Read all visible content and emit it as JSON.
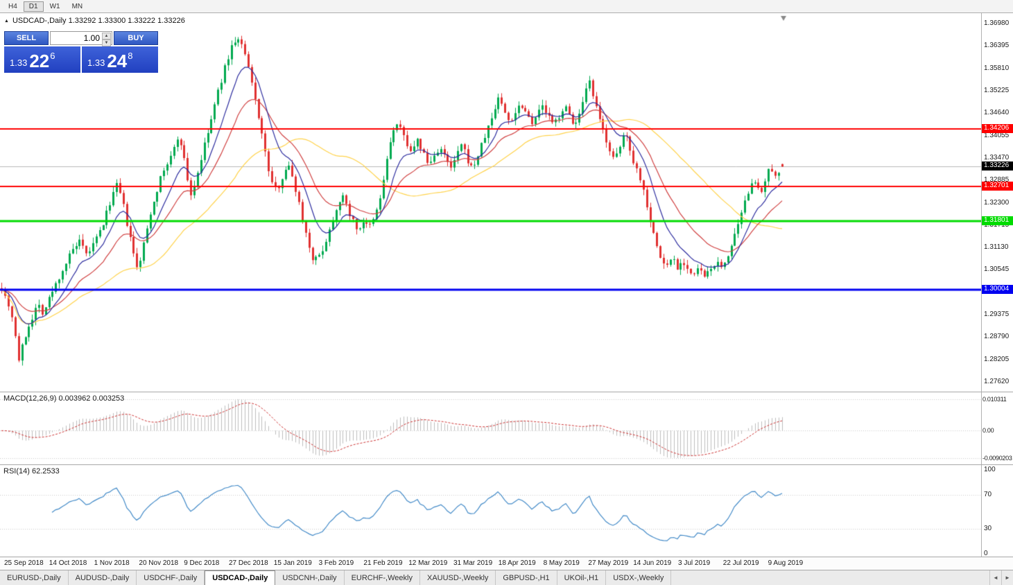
{
  "window": {
    "toolbar_timeframes": [
      {
        "label": "H4",
        "active": false
      },
      {
        "label": "D1",
        "active": true
      },
      {
        "label": "W1",
        "active": false
      },
      {
        "label": "MN",
        "active": false
      }
    ]
  },
  "chart": {
    "title": "USDCAD-,Daily 1.33292 1.33300 1.33222 1.33226",
    "collapse_icon": "▲",
    "price_axis_ticks": [
      "1.36980",
      "1.36395",
      "1.35810",
      "1.35225",
      "1.34640",
      "1.34055",
      "1.33470",
      "1.32885",
      "1.32300",
      "1.31715",
      "1.31130",
      "1.30545",
      "1.29960",
      "1.29375",
      "1.28790",
      "1.28205",
      "1.27620"
    ],
    "levels": [
      {
        "label": "1.34206",
        "price": 1.34206,
        "color": "#FF0000",
        "width": 2
      },
      {
        "label": "1.32701",
        "price": 1.32701,
        "color": "#FF0000",
        "width": 2
      },
      {
        "label": "1.31801",
        "price": 1.31801,
        "color": "#00DB00",
        "width": 3
      },
      {
        "label": "1.30004",
        "price": 1.30004,
        "color": "#0000F0",
        "width": 3
      }
    ],
    "current_price": {
      "label": "1.33226",
      "price": 1.33226,
      "color": "#000000"
    }
  },
  "trade_panel": {
    "sell_label": "SELL",
    "buy_label": "BUY",
    "volume": "1.00",
    "spin_up_icon": "▲",
    "spin_down_icon": "▼",
    "bid": {
      "prefix": "1.33",
      "big": "22",
      "sup": "6"
    },
    "ask": {
      "prefix": "1.33",
      "big": "24",
      "sup": "8"
    }
  },
  "macd_panel": {
    "label": "MACD(12,26,9) 0.003962 0.003253",
    "axis": [
      "0.010311",
      "0.00",
      "-0.0090203"
    ]
  },
  "rsi_panel": {
    "label": "RSI(14) 62.2533",
    "axis": [
      "100",
      "70",
      "30",
      "0"
    ],
    "axis_values": [
      100,
      70,
      30,
      0
    ]
  },
  "date_axis": [
    "25 Sep 2018",
    "14 Oct 2018",
    "1 Nov 2018",
    "20 Nov 2018",
    "9 Dec 2018",
    "27 Dec 2018",
    "15 Jan 2019",
    "3 Feb 2019",
    "21 Feb 2019",
    "12 Mar 2019",
    "31 Mar 2019",
    "18 Apr 2019",
    "8 May 2019",
    "27 May 2019",
    "14 Jun 2019",
    "3 Jul 2019",
    "22 Jul 2019",
    "9 Aug 2019"
  ],
  "tabs": {
    "scroll_left_icon": "◄",
    "scroll_right_icon": "►",
    "items": [
      {
        "label": "EURUSD-,Daily",
        "active": false
      },
      {
        "label": "AUDUSD-,Daily",
        "active": false
      },
      {
        "label": "USDCHF-,Daily",
        "active": false
      },
      {
        "label": "USDCAD-,Daily",
        "active": true
      },
      {
        "label": "USDCNH-,Daily",
        "active": false
      },
      {
        "label": "EURCHF-,Weekly",
        "active": false
      },
      {
        "label": "XAUUSD-,Weekly",
        "active": false
      },
      {
        "label": "GBPUSD-,H1",
        "active": false
      },
      {
        "label": "UKOil-,H1",
        "active": false
      },
      {
        "label": "USDX-,Weekly",
        "active": false
      }
    ]
  },
  "chart_data": {
    "type": "candlestick",
    "symbol": "USDCAD-",
    "timeframe": "Daily",
    "ohlc": {
      "open": 1.33292,
      "high": 1.333,
      "low": 1.33222,
      "close": 1.33226
    },
    "bars": 232,
    "price_range": [
      1.27348,
      1.37234
    ],
    "data_width_ratio": 0.7986,
    "horizontal_levels": [
      1.34206,
      1.32701,
      1.31801,
      1.30004
    ],
    "last_price": 1.33226,
    "moving_averages": [
      {
        "type": "EMA",
        "period": 10,
        "color": "#2B2B9E"
      },
      {
        "type": "EMA",
        "period": 22,
        "color": "#D04040"
      },
      {
        "type": "SMA",
        "period": 45,
        "color": "#FFD24A"
      }
    ],
    "macd": {
      "params": [
        12,
        26,
        9
      ],
      "last_main": 0.003962,
      "last_signal": 0.003253,
      "axis_max": 0.010311,
      "axis_min": -0.0090203
    },
    "rsi": {
      "period": 14,
      "last": 62.2533,
      "levels": [
        70,
        30
      ]
    },
    "colors": {
      "up": "#00A94F",
      "down": "#E03030",
      "macd_hist": "#BDBDBD",
      "macd_signal": "#CC3333",
      "rsi_line": "#4189C7",
      "current_line": "#B8B8B8",
      "grid_dot": "#C9C9C9"
    },
    "anchors": [
      [
        0.0,
        1.301
      ],
      [
        0.006,
        1.2975
      ],
      [
        0.012,
        1.2945
      ],
      [
        0.017,
        1.2885
      ],
      [
        0.021,
        1.2815
      ],
      [
        0.026,
        1.285
      ],
      [
        0.032,
        1.2895
      ],
      [
        0.039,
        1.293
      ],
      [
        0.046,
        1.2965
      ],
      [
        0.053,
        1.294
      ],
      [
        0.06,
        1.2975
      ],
      [
        0.067,
        1.3005
      ],
      [
        0.075,
        1.304
      ],
      [
        0.083,
        1.3075
      ],
      [
        0.091,
        1.3105
      ],
      [
        0.1,
        1.3125
      ],
      [
        0.108,
        1.309
      ],
      [
        0.116,
        1.3115
      ],
      [
        0.124,
        1.3145
      ],
      [
        0.132,
        1.3185
      ],
      [
        0.14,
        1.324
      ],
      [
        0.148,
        1.3275
      ],
      [
        0.154,
        1.3235
      ],
      [
        0.16,
        1.3175
      ],
      [
        0.167,
        1.311
      ],
      [
        0.173,
        1.3055
      ],
      [
        0.179,
        1.309
      ],
      [
        0.186,
        1.316
      ],
      [
        0.193,
        1.3225
      ],
      [
        0.2,
        1.327
      ],
      [
        0.208,
        1.3315
      ],
      [
        0.216,
        1.3345
      ],
      [
        0.222,
        1.3375
      ],
      [
        0.227,
        1.341
      ],
      [
        0.232,
        1.336
      ],
      [
        0.238,
        1.329
      ],
      [
        0.243,
        1.3245
      ],
      [
        0.249,
        1.329
      ],
      [
        0.255,
        1.334
      ],
      [
        0.262,
        1.3395
      ],
      [
        0.269,
        1.345
      ],
      [
        0.276,
        1.351
      ],
      [
        0.283,
        1.356
      ],
      [
        0.29,
        1.361
      ],
      [
        0.297,
        1.365
      ],
      [
        0.304,
        1.3655
      ],
      [
        0.311,
        1.362
      ],
      [
        0.318,
        1.356
      ],
      [
        0.325,
        1.3495
      ],
      [
        0.332,
        1.3425
      ],
      [
        0.339,
        1.334
      ],
      [
        0.346,
        1.328
      ],
      [
        0.352,
        1.326
      ],
      [
        0.359,
        1.3295
      ],
      [
        0.366,
        1.333
      ],
      [
        0.372,
        1.33
      ],
      [
        0.379,
        1.3245
      ],
      [
        0.386,
        1.318
      ],
      [
        0.393,
        1.312
      ],
      [
        0.4,
        1.3075
      ],
      [
        0.407,
        1.309
      ],
      [
        0.414,
        1.312
      ],
      [
        0.421,
        1.3165
      ],
      [
        0.428,
        1.321
      ],
      [
        0.435,
        1.325
      ],
      [
        0.442,
        1.322
      ],
      [
        0.449,
        1.3185
      ],
      [
        0.456,
        1.3155
      ],
      [
        0.463,
        1.318
      ],
      [
        0.47,
        1.316
      ],
      [
        0.477,
        1.3185
      ],
      [
        0.484,
        1.323
      ],
      [
        0.491,
        1.331
      ],
      [
        0.498,
        1.339
      ],
      [
        0.505,
        1.3435
      ],
      [
        0.512,
        1.3415
      ],
      [
        0.519,
        1.3385
      ],
      [
        0.526,
        1.336
      ],
      [
        0.533,
        1.339
      ],
      [
        0.54,
        1.336
      ],
      [
        0.547,
        1.3325
      ],
      [
        0.554,
        1.335
      ],
      [
        0.561,
        1.3375
      ],
      [
        0.568,
        1.3345
      ],
      [
        0.575,
        1.3315
      ],
      [
        0.582,
        1.3345
      ],
      [
        0.589,
        1.338
      ],
      [
        0.596,
        1.3345
      ],
      [
        0.603,
        1.3315
      ],
      [
        0.61,
        1.335
      ],
      [
        0.617,
        1.339
      ],
      [
        0.624,
        1.343
      ],
      [
        0.63,
        1.346
      ],
      [
        0.637,
        1.351
      ],
      [
        0.644,
        1.3465
      ],
      [
        0.651,
        1.344
      ],
      [
        0.658,
        1.3465
      ],
      [
        0.665,
        1.349
      ],
      [
        0.672,
        1.3465
      ],
      [
        0.679,
        1.344
      ],
      [
        0.686,
        1.346
      ],
      [
        0.693,
        1.348
      ],
      [
        0.7,
        1.3455
      ],
      [
        0.707,
        1.343
      ],
      [
        0.714,
        1.3455
      ],
      [
        0.721,
        1.348
      ],
      [
        0.728,
        1.3455
      ],
      [
        0.735,
        1.343
      ],
      [
        0.741,
        1.346
      ],
      [
        0.747,
        1.35
      ],
      [
        0.752,
        1.355
      ],
      [
        0.758,
        1.3505
      ],
      [
        0.764,
        1.3455
      ],
      [
        0.771,
        1.3415
      ],
      [
        0.778,
        1.3375
      ],
      [
        0.785,
        1.3335
      ],
      [
        0.792,
        1.337
      ],
      [
        0.798,
        1.3415
      ],
      [
        0.804,
        1.338
      ],
      [
        0.81,
        1.3335
      ],
      [
        0.817,
        1.33
      ],
      [
        0.824,
        1.325
      ],
      [
        0.831,
        1.3185
      ],
      [
        0.838,
        1.3125
      ],
      [
        0.845,
        1.308
      ],
      [
        0.852,
        1.306
      ],
      [
        0.859,
        1.309
      ],
      [
        0.866,
        1.306
      ],
      [
        0.873,
        1.3078
      ],
      [
        0.88,
        1.3052
      ],
      [
        0.887,
        1.3035
      ],
      [
        0.894,
        1.306
      ],
      [
        0.901,
        1.303
      ],
      [
        0.908,
        1.3052
      ],
      [
        0.915,
        1.3075
      ],
      [
        0.922,
        1.3055
      ],
      [
        0.929,
        1.3085
      ],
      [
        0.936,
        1.312
      ],
      [
        0.943,
        1.316
      ],
      [
        0.95,
        1.321
      ],
      [
        0.957,
        1.326
      ],
      [
        0.963,
        1.33
      ],
      [
        0.968,
        1.327
      ],
      [
        0.973,
        1.324
      ],
      [
        0.978,
        1.328
      ],
      [
        0.984,
        1.332
      ],
      [
        0.989,
        1.329
      ],
      [
        0.994,
        1.331
      ],
      [
        1.0,
        1.3323
      ]
    ]
  }
}
